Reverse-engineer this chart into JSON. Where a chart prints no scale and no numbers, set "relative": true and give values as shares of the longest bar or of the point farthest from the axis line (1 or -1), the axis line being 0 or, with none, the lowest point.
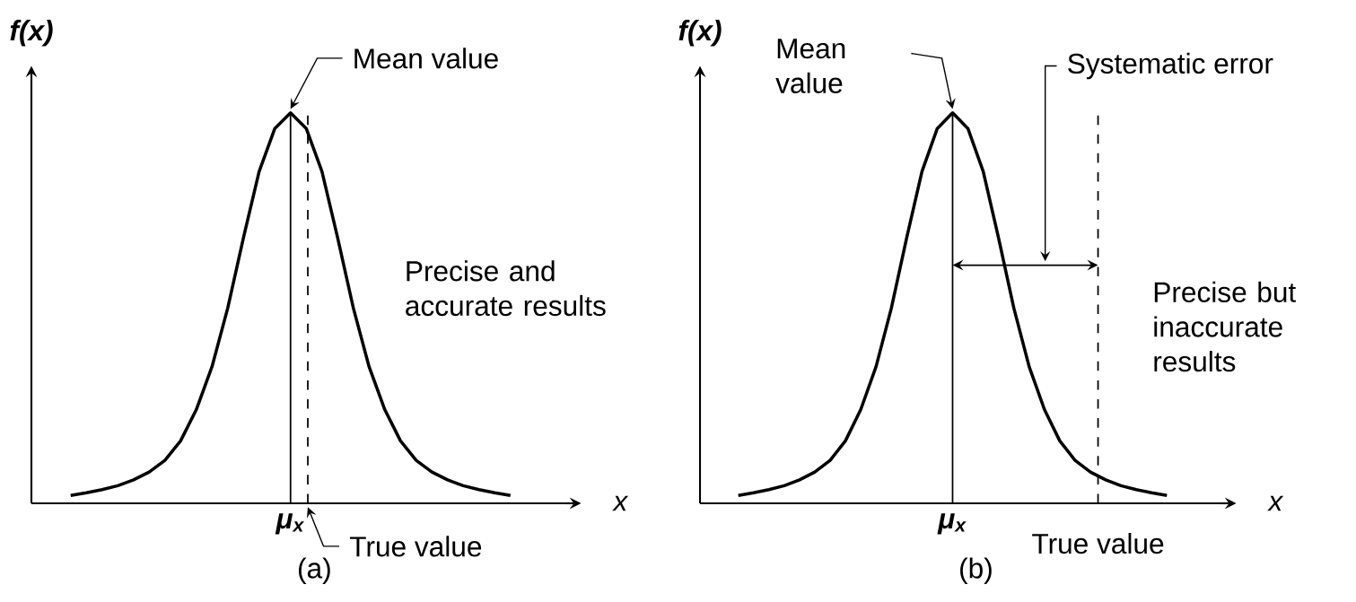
{
  "chart_data": [
    {
      "type": "line",
      "title": "(a)",
      "xlabel": "x",
      "ylabel": "f(x)",
      "relative": true,
      "categories": [
        null,
        null,
        null,
        null,
        null,
        null,
        null,
        null,
        null,
        null,
        null,
        null,
        null,
        null,
        null,
        null,
        null,
        null,
        null,
        null,
        null,
        null,
        null,
        null,
        null,
        null,
        null,
        null,
        null
      ],
      "series": [
        {
          "color": "#000000",
          "values": [
            0.02,
            0.027,
            0.035,
            0.045,
            0.06,
            0.08,
            0.11,
            0.16,
            0.24,
            0.35,
            0.5,
            0.68,
            0.85,
            0.96,
            1,
            0.96,
            0.85,
            0.68,
            0.5,
            0.35,
            0.24,
            0.16,
            0.11,
            0.08,
            0.06,
            0.045,
            0.035,
            0.027,
            0.02
          ]
        }
      ],
      "annotations": [
        "Mean value",
        "True value",
        "Precise and accurate results",
        "μ$_{x}$"
      ]
    },
    {
      "type": "line",
      "title": "(b)",
      "xlabel": "x",
      "ylabel": "f(x)",
      "relative": true,
      "categories": [
        null,
        null,
        null,
        null,
        null,
        null,
        null,
        null,
        null,
        null,
        null,
        null,
        null,
        null,
        null,
        null,
        null,
        null,
        null,
        null,
        null,
        null,
        null,
        null,
        null,
        null,
        null,
        null,
        null
      ],
      "series": [
        {
          "color": "#000000",
          "values": [
            0.02,
            0.027,
            0.035,
            0.045,
            0.06,
            0.08,
            0.11,
            0.16,
            0.24,
            0.35,
            0.5,
            0.68,
            0.85,
            0.96,
            1,
            0.96,
            0.85,
            0.68,
            0.5,
            0.35,
            0.24,
            0.16,
            0.11,
            0.08,
            0.06,
            0.045,
            0.035,
            0.027,
            0.02
          ]
        }
      ],
      "annotations": [
        "Mean value",
        "True value",
        "Systematic error",
        "Precise but inaccurate results",
        "μ$_{x}$"
      ]
    }
  ]
}
